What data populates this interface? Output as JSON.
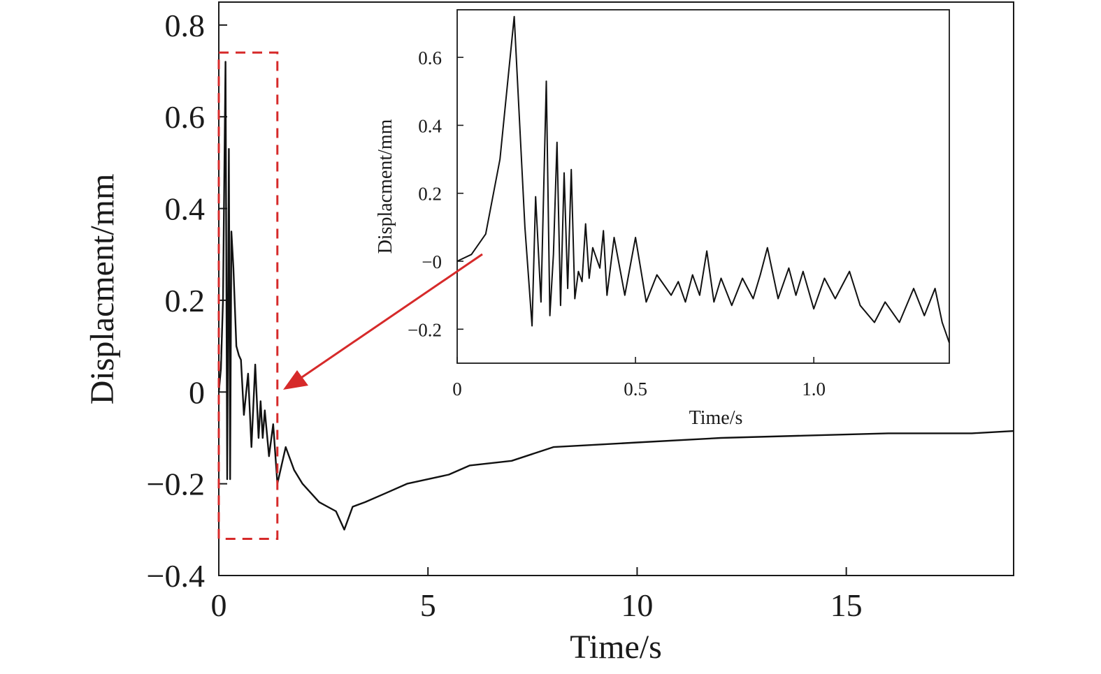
{
  "colors": {
    "trace": "#111111",
    "axes": "#1a1a1a",
    "highlight": "#d62a2a"
  },
  "chart_data": [
    {
      "id": "main",
      "type": "line",
      "xlabel": "Time/s",
      "ylabel": "Displacment/mm",
      "xlim": [
        0,
        19
      ],
      "ylim": [
        -0.4,
        0.85
      ],
      "xticks": [
        0,
        5,
        10,
        15
      ],
      "xtick_labels": [
        "0",
        "5",
        "10",
        "15"
      ],
      "yticks": [
        0.8,
        0.6,
        0.4,
        0.2,
        0,
        -0.2,
        -0.4
      ],
      "ytick_labels": [
        "0.8",
        "0.6",
        "0.4",
        "0.2",
        "0",
        "−0.2",
        "−0.4"
      ],
      "grid": false,
      "highlight_region": {
        "x": [
          0,
          1.4
        ],
        "y": [
          -0.32,
          0.74
        ]
      },
      "series": [
        {
          "x": [
            0,
            0.05,
            0.1,
            0.16,
            0.2,
            0.24,
            0.27,
            0.3,
            0.35,
            0.42,
            0.48,
            0.53,
            0.6,
            0.7,
            0.78,
            0.87,
            0.95,
            1.0,
            1.05,
            1.1,
            1.2,
            1.3,
            1.4,
            1.6,
            1.8,
            2.0,
            2.2,
            2.4,
            2.6,
            2.8,
            3.0,
            3.2,
            3.5,
            4.0,
            4.5,
            5.0,
            5.5,
            6.0,
            7.0,
            8.0,
            9.0,
            10.0,
            12.0,
            14.0,
            16.0,
            18.0,
            19.0
          ],
          "y": [
            0,
            0.05,
            0.2,
            0.72,
            -0.19,
            0.53,
            -0.19,
            0.35,
            0.27,
            0.1,
            0.08,
            0.07,
            -0.05,
            0.04,
            -0.12,
            0.06,
            -0.1,
            -0.02,
            -0.1,
            -0.04,
            -0.14,
            -0.07,
            -0.2,
            -0.12,
            -0.17,
            -0.2,
            -0.22,
            -0.24,
            -0.25,
            -0.26,
            -0.3,
            -0.25,
            -0.24,
            -0.22,
            -0.2,
            -0.19,
            -0.18,
            -0.16,
            -0.15,
            -0.12,
            -0.115,
            -0.11,
            -0.1,
            -0.095,
            -0.09,
            -0.09,
            -0.085
          ]
        }
      ]
    },
    {
      "id": "inset",
      "type": "line",
      "xlabel": "Time/s",
      "ylabel": "Displacment/mm",
      "xlim": [
        0,
        1.38
      ],
      "ylim": [
        -0.3,
        0.74
      ],
      "xticks": [
        0,
        0.5,
        1.0
      ],
      "xtick_labels": [
        "0",
        "0.5",
        "1.0"
      ],
      "yticks": [
        0.6,
        0.4,
        0.2,
        0,
        -0.2
      ],
      "ytick_labels": [
        "0.6",
        "0.4",
        "0.2",
        "−0",
        "−0.2"
      ],
      "grid": false,
      "series": [
        {
          "x": [
            0,
            0.04,
            0.08,
            0.12,
            0.16,
            0.19,
            0.21,
            0.22,
            0.235,
            0.25,
            0.26,
            0.27,
            0.28,
            0.29,
            0.3,
            0.31,
            0.32,
            0.33,
            0.34,
            0.35,
            0.36,
            0.37,
            0.38,
            0.4,
            0.41,
            0.42,
            0.44,
            0.47,
            0.5,
            0.53,
            0.56,
            0.6,
            0.62,
            0.64,
            0.66,
            0.68,
            0.7,
            0.72,
            0.74,
            0.77,
            0.8,
            0.83,
            0.85,
            0.87,
            0.9,
            0.93,
            0.95,
            0.97,
            1.0,
            1.03,
            1.06,
            1.1,
            1.13,
            1.17,
            1.2,
            1.24,
            1.28,
            1.31,
            1.34,
            1.36,
            1.38
          ],
          "y": [
            0,
            0.02,
            0.08,
            0.3,
            0.72,
            0.1,
            -0.19,
            0.19,
            -0.12,
            0.53,
            -0.16,
            0.02,
            0.35,
            -0.13,
            0.26,
            -0.08,
            0.27,
            -0.11,
            -0.03,
            -0.06,
            0.11,
            -0.05,
            0.04,
            -0.02,
            0.09,
            -0.1,
            0.07,
            -0.1,
            0.07,
            -0.12,
            -0.04,
            -0.1,
            -0.06,
            -0.12,
            -0.04,
            -0.1,
            0.03,
            -0.12,
            -0.05,
            -0.13,
            -0.05,
            -0.11,
            -0.04,
            0.04,
            -0.11,
            -0.02,
            -0.1,
            -0.03,
            -0.14,
            -0.05,
            -0.11,
            -0.03,
            -0.13,
            -0.18,
            -0.12,
            -0.18,
            -0.08,
            -0.16,
            -0.08,
            -0.18,
            -0.24
          ]
        }
      ]
    }
  ]
}
